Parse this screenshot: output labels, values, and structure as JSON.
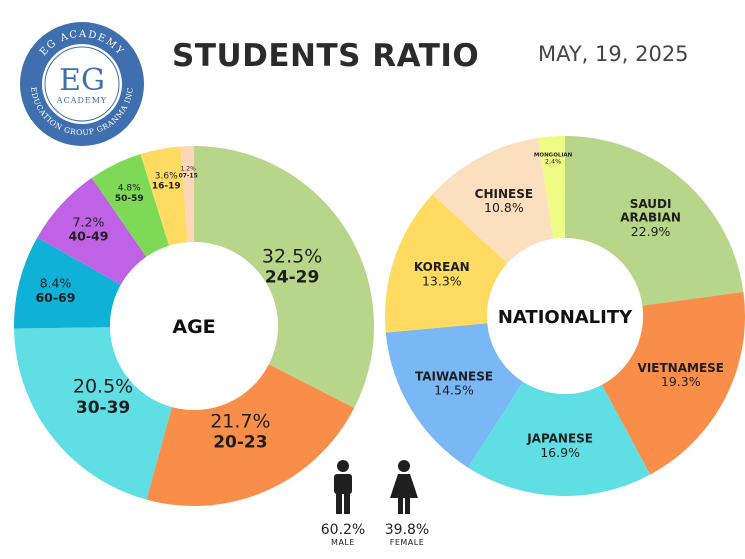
{
  "header": {
    "title": "STUDENTS RATIO",
    "date": "MAY, 19, 2025"
  },
  "logo": {
    "ring_top": "EG ACADEMY",
    "ring_bottom": "EDUCATION GROUP GRANMA INC",
    "initials": "EG",
    "subtitle": "ACADEMY",
    "color": "#3f6fae"
  },
  "gender": {
    "male": {
      "pct": "60.2%",
      "label": "MALE"
    },
    "female": {
      "pct": "39.8%",
      "label": "FEMALE"
    }
  },
  "chart_data": [
    {
      "type": "pie",
      "center_label": "AGE",
      "slices": [
        {
          "category": "24-29",
          "value": 32.5,
          "label": "32.5%",
          "color": "#b8d68a"
        },
        {
          "category": "20-23",
          "value": 21.7,
          "label": "21.7%",
          "color": "#f98d4a"
        },
        {
          "category": "30-39",
          "value": 20.5,
          "label": "20.5%",
          "color": "#5fdfe4"
        },
        {
          "category": "60-69",
          "value": 8.4,
          "label": "8.4%",
          "color": "#0fb2d6"
        },
        {
          "category": "40-49",
          "value": 7.2,
          "label": "7.2%",
          "color": "#c062e6"
        },
        {
          "category": "50-59",
          "value": 4.8,
          "label": "4.8%",
          "color": "#7ed957"
        },
        {
          "category": "16-19",
          "value": 3.6,
          "label": "3.6%",
          "color": "#ffdb62"
        },
        {
          "category": "07-15",
          "value": 1.2,
          "label": "1.2%",
          "color": "#fcd8b8"
        }
      ]
    },
    {
      "type": "pie",
      "center_label": "NATIONALITY",
      "slices": [
        {
          "category": "SAUDI ARABIAN",
          "value": 22.9,
          "label": "22.9%",
          "color": "#b8d68a"
        },
        {
          "category": "VIETNAMESE",
          "value": 19.3,
          "label": "19.3%",
          "color": "#f98d4a"
        },
        {
          "category": "JAPANESE",
          "value": 16.9,
          "label": "16.9%",
          "color": "#5fdfe4"
        },
        {
          "category": "TAIWANESE",
          "value": 14.5,
          "label": "14.5%",
          "color": "#7ab8f5"
        },
        {
          "category": "KOREAN",
          "value": 13.3,
          "label": "13.3%",
          "color": "#ffdb62"
        },
        {
          "category": "CHINESE",
          "value": 10.8,
          "label": "10.8%",
          "color": "#fcdfbf"
        },
        {
          "category": "MONGOLIAN",
          "value": 2.4,
          "label": "2.4%",
          "color": "#eefc86"
        }
      ]
    }
  ]
}
